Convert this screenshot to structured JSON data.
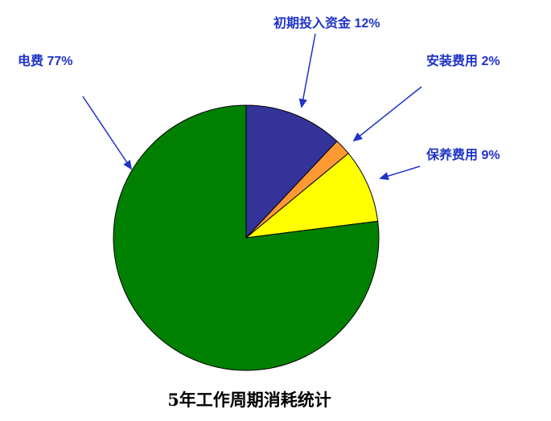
{
  "chart_data": {
    "type": "pie",
    "title": "5年工作周期消耗统计",
    "start": "top",
    "direction": "clockwise",
    "slices": [
      {
        "label": "初期投入资金 12%",
        "value": 12,
        "color": "#333399"
      },
      {
        "label": "安装费用 2%",
        "value": 2,
        "color": "#ff9933"
      },
      {
        "label": "保养费用 9%",
        "value": 9,
        "color": "#ffff00"
      },
      {
        "label": "电费 77%",
        "value": 77,
        "color": "#008000"
      }
    ],
    "label_color": "#1f33c8",
    "legend": "none"
  }
}
